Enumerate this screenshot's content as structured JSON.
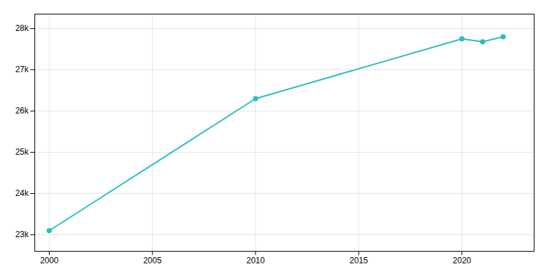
{
  "chart_data": {
    "type": "line",
    "x": [
      2000,
      2010,
      2020,
      2021,
      2022
    ],
    "series": [
      {
        "values": [
          23100,
          26300,
          27750,
          27680,
          27800
        ],
        "color": "#2ABFBF",
        "marker": "circle"
      }
    ],
    "xlim": [
      1999.3,
      2023.5
    ],
    "xticks": [
      2000,
      2005,
      2010,
      2015,
      2020
    ],
    "ylim": [
      22600,
      28350
    ],
    "yticks": [
      {
        "value": 23000,
        "label": "23k"
      },
      {
        "value": 24000,
        "label": "24k"
      },
      {
        "value": 25000,
        "label": "25k"
      },
      {
        "value": 26000,
        "label": "26k"
      },
      {
        "value": 27000,
        "label": "27k"
      },
      {
        "value": 28000,
        "label": "28k"
      }
    ],
    "grid": true
  }
}
